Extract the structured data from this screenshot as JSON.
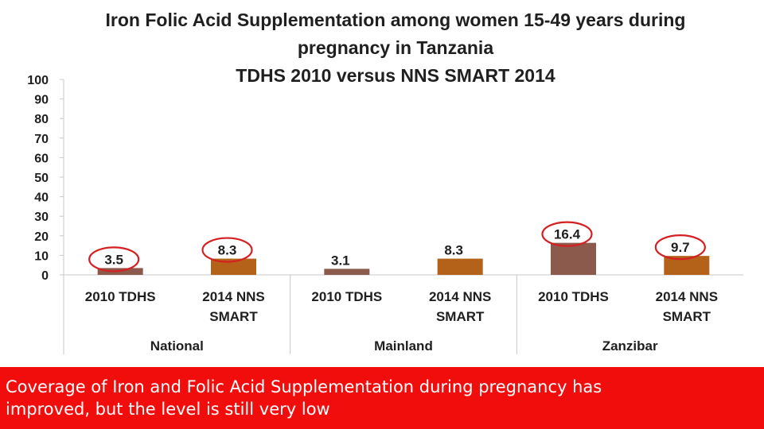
{
  "chart_data": {
    "type": "bar",
    "title_lines": [
      "Iron Folic Acid Supplementation among women 15-49 years during",
      "pregnancy in Tanzania",
      "TDHS 2010 versus NNS SMART 2014"
    ],
    "ylim": [
      0,
      100
    ],
    "yticks": [
      "100",
      "90",
      "80",
      "70",
      "60",
      "50",
      "40",
      "30",
      "20",
      "10",
      "0"
    ],
    "groups": [
      "National",
      "Mainland",
      "Zanzibar"
    ],
    "categories": [
      {
        "group": "National",
        "label": [
          "2010 TDHS"
        ],
        "value": 3.5,
        "value_label": "3.5",
        "circled": true,
        "color": "#8b5a4c"
      },
      {
        "group": "National",
        "label": [
          "2014 NNS",
          "SMART"
        ],
        "value": 8.3,
        "value_label": "8.3",
        "circled": true,
        "color": "#b4621a"
      },
      {
        "group": "Mainland",
        "label": [
          "2010 TDHS"
        ],
        "value": 3.1,
        "value_label": "3.1",
        "circled": false,
        "color": "#8b5a4c"
      },
      {
        "group": "Mainland",
        "label": [
          "2014 NNS",
          "SMART"
        ],
        "value": 8.3,
        "value_label": "8.3",
        "circled": false,
        "color": "#b4621a"
      },
      {
        "group": "Zanzibar",
        "label": [
          "2010 TDHS"
        ],
        "value": 16.4,
        "value_label": "16.4",
        "circled": true,
        "color": "#8b5a4c"
      },
      {
        "group": "Zanzibar",
        "label": [
          "2014 NNS",
          "SMART"
        ],
        "value": 9.7,
        "value_label": "9.7",
        "circled": true,
        "color": "#b4621a"
      }
    ],
    "annotation_color": "#d42020",
    "grid": false,
    "legend": "none"
  },
  "footer": {
    "lines": [
      "Coverage of Iron and Folic Acid Supplementation during pregnancy has",
      "improved, but the level is still very low"
    ],
    "background": "#f20d0d"
  }
}
